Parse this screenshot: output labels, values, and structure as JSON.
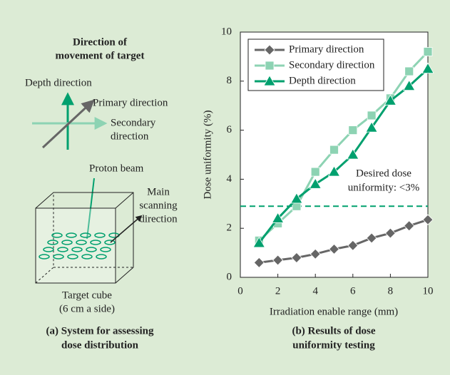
{
  "diagram": {
    "title": [
      "Direction of",
      "movement of target"
    ],
    "labels": {
      "depth": "Depth direction",
      "primary": "Primary direction",
      "secondary": [
        "Secondary",
        "direction"
      ],
      "beam": "Proton beam",
      "scanning": [
        "Main",
        "scanning",
        "direction"
      ],
      "cube": [
        "Target cube",
        "(6 cm a side)"
      ]
    },
    "caption": [
      "(a) System for assessing",
      "dose distribution"
    ]
  },
  "chart_data": {
    "type": "line",
    "x_label": "Irradiation enable range (mm)",
    "y_label": "Dose uniformity (%)",
    "x": [
      1,
      2,
      3,
      4,
      5,
      6,
      7,
      8,
      9,
      10
    ],
    "series": [
      {
        "name": "Primary direction",
        "color": "#666666",
        "marker": "diamond",
        "values": [
          0.6,
          0.7,
          0.8,
          0.95,
          1.15,
          1.3,
          1.6,
          1.8,
          2.1,
          2.35
        ]
      },
      {
        "name": "Secondary direction",
        "color": "#8dd3b3",
        "marker": "square",
        "values": [
          1.5,
          2.2,
          2.9,
          4.3,
          5.2,
          6.0,
          6.6,
          7.3,
          8.4,
          9.2
        ]
      },
      {
        "name": "Depth direction",
        "color": "#00a06e",
        "marker": "triangle",
        "values": [
          1.4,
          2.4,
          3.2,
          3.8,
          4.3,
          5.0,
          6.1,
          7.2,
          7.8,
          8.5
        ]
      }
    ],
    "xlim": [
      0,
      10
    ],
    "ylim": [
      0,
      10
    ],
    "xticks": [
      0,
      2,
      4,
      6,
      8,
      10
    ],
    "yticks": [
      0,
      2,
      4,
      6,
      8,
      10
    ],
    "legend": "upper left",
    "reference_line": {
      "value": 2.9,
      "color": "#00a06e",
      "label": [
        "Desired dose",
        "uniformity: <3%"
      ]
    },
    "caption": [
      "(b) Results of dose",
      "uniformity testing"
    ]
  }
}
